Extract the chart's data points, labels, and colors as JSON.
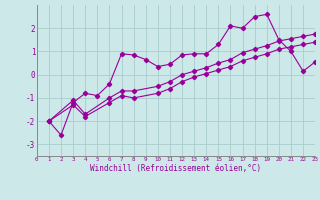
{
  "xlabel": "Windchill (Refroidissement éolien,°C)",
  "bg_color": "#cce8e8",
  "line_color": "#990099",
  "grid_color": "#aacccc",
  "series1_x": [
    1,
    2,
    3,
    4,
    5,
    6,
    7,
    8,
    9,
    10,
    11,
    12,
    13,
    14,
    15,
    16,
    17,
    18,
    19,
    20,
    21,
    22,
    23
  ],
  "series1_y": [
    -2.0,
    -2.6,
    -1.2,
    -0.8,
    -0.9,
    -0.4,
    0.9,
    0.85,
    0.65,
    0.35,
    0.45,
    0.85,
    0.9,
    0.9,
    1.3,
    2.1,
    2.0,
    2.5,
    2.6,
    1.5,
    1.0,
    0.15,
    0.55
  ],
  "series2_x": [
    1,
    3,
    4,
    6,
    7,
    8,
    10,
    11,
    12,
    13,
    14,
    15,
    16,
    17,
    18,
    19,
    20,
    21,
    22,
    23
  ],
  "series2_y": [
    -2.0,
    -1.1,
    -1.7,
    -1.0,
    -0.7,
    -0.7,
    -0.5,
    -0.3,
    0.0,
    0.15,
    0.3,
    0.5,
    0.65,
    0.95,
    1.1,
    1.25,
    1.45,
    1.55,
    1.65,
    1.75
  ],
  "series3_x": [
    1,
    3,
    4,
    6,
    7,
    8,
    10,
    11,
    12,
    13,
    14,
    15,
    16,
    17,
    18,
    19,
    20,
    21,
    22,
    23
  ],
  "series3_y": [
    -2.0,
    -1.3,
    -1.8,
    -1.2,
    -0.9,
    -1.0,
    -0.8,
    -0.6,
    -0.3,
    -0.1,
    0.05,
    0.2,
    0.35,
    0.6,
    0.75,
    0.9,
    1.1,
    1.2,
    1.3,
    1.4
  ],
  "xlim": [
    0,
    23
  ],
  "ylim": [
    -3.5,
    3.0
  ],
  "yticks": [
    -3,
    -2,
    -1,
    0,
    1,
    2
  ],
  "xticks": [
    0,
    1,
    2,
    3,
    4,
    5,
    6,
    7,
    8,
    9,
    10,
    11,
    12,
    13,
    14,
    15,
    16,
    17,
    18,
    19,
    20,
    21,
    22,
    23
  ],
  "xlabel_fontsize": 5.5,
  "xtick_fontsize": 4.2,
  "ytick_fontsize": 5.5
}
